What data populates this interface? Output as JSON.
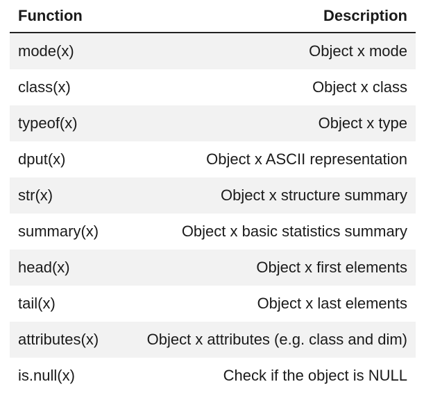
{
  "headers": {
    "function": "Function",
    "description": "Description"
  },
  "rows": [
    {
      "function": "mode(x)",
      "description": "Object x mode"
    },
    {
      "function": "class(x)",
      "description": "Object x class"
    },
    {
      "function": "typeof(x)",
      "description": "Object x type"
    },
    {
      "function": "dput(x)",
      "description": "Object x ASCII representation"
    },
    {
      "function": "str(x)",
      "description": "Object x structure summary"
    },
    {
      "function": "summary(x)",
      "description": "Object x basic statistics summary"
    },
    {
      "function": "head(x)",
      "description": "Object x first elements"
    },
    {
      "function": "tail(x)",
      "description": "Object x last elements"
    },
    {
      "function": "attributes(x)",
      "description": "Object x attributes (e.g. class and dim)"
    },
    {
      "function": "is.null(x)",
      "description": "Check if the object is NULL"
    }
  ]
}
